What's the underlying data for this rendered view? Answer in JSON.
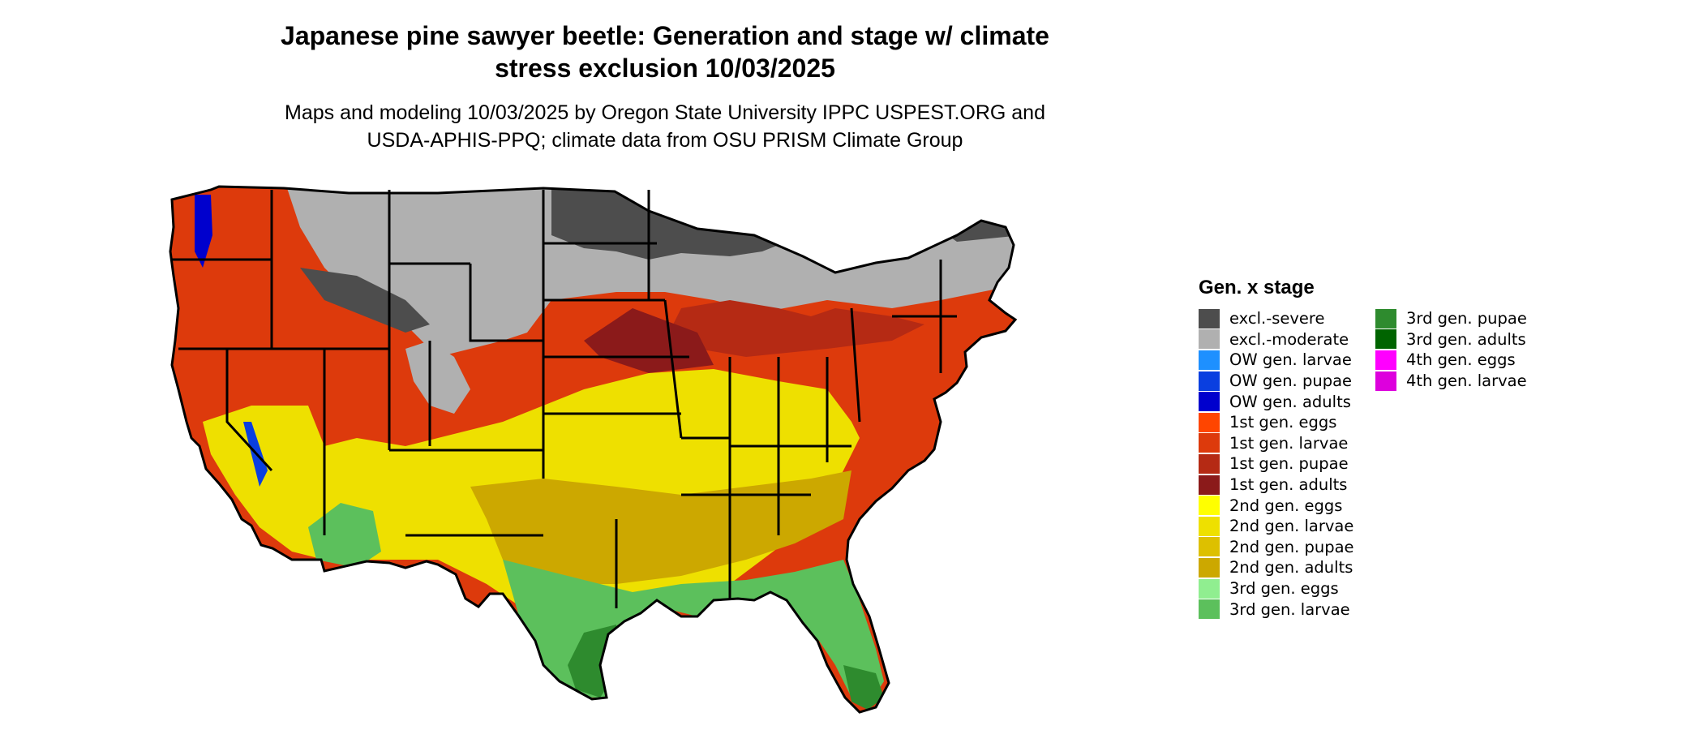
{
  "header": {
    "title_line1": "Japanese pine sawyer beetle: Generation and stage w/ climate",
    "title_line2": "stress exclusion 10/03/2025",
    "subtitle_line1": "Maps and modeling 10/03/2025 by Oregon State University IPPC USPEST.ORG and",
    "subtitle_line2": "USDA-APHIS-PPQ; climate data from OSU PRISM Climate Group"
  },
  "legend": {
    "title": "Gen. x stage",
    "items": [
      {
        "label": "excl.-severe",
        "color": "#4d4d4d"
      },
      {
        "label": "excl.-moderate",
        "color": "#b0b0b0"
      },
      {
        "label": "OW gen. larvae",
        "color": "#1e90ff"
      },
      {
        "label": "OW gen. pupae",
        "color": "#0a3fe0"
      },
      {
        "label": "OW gen. adults",
        "color": "#0000cd"
      },
      {
        "label": "1st gen. eggs",
        "color": "#ff4500"
      },
      {
        "label": "1st gen. larvae",
        "color": "#dd3a0c"
      },
      {
        "label": "1st gen. pupae",
        "color": "#b52a14"
      },
      {
        "label": "1st gen. adults",
        "color": "#8b1a1a"
      },
      {
        "label": "2nd gen. eggs",
        "color": "#ffff00"
      },
      {
        "label": "2nd gen. larvae",
        "color": "#eee000"
      },
      {
        "label": "2nd gen. pupae",
        "color": "#ddc000"
      },
      {
        "label": "2nd gen. adults",
        "color": "#cca800"
      },
      {
        "label": "3rd gen. eggs",
        "color": "#90ee90"
      },
      {
        "label": "3rd gen. larvae",
        "color": "#5cc05c"
      },
      {
        "label": "3rd gen. pupae",
        "color": "#2e8b2e"
      },
      {
        "label": "3rd gen. adults",
        "color": "#006400"
      },
      {
        "label": "4th gen. eggs",
        "color": "#ff00ff"
      },
      {
        "label": "4th gen. larvae",
        "color": "#dd00dd"
      }
    ]
  }
}
